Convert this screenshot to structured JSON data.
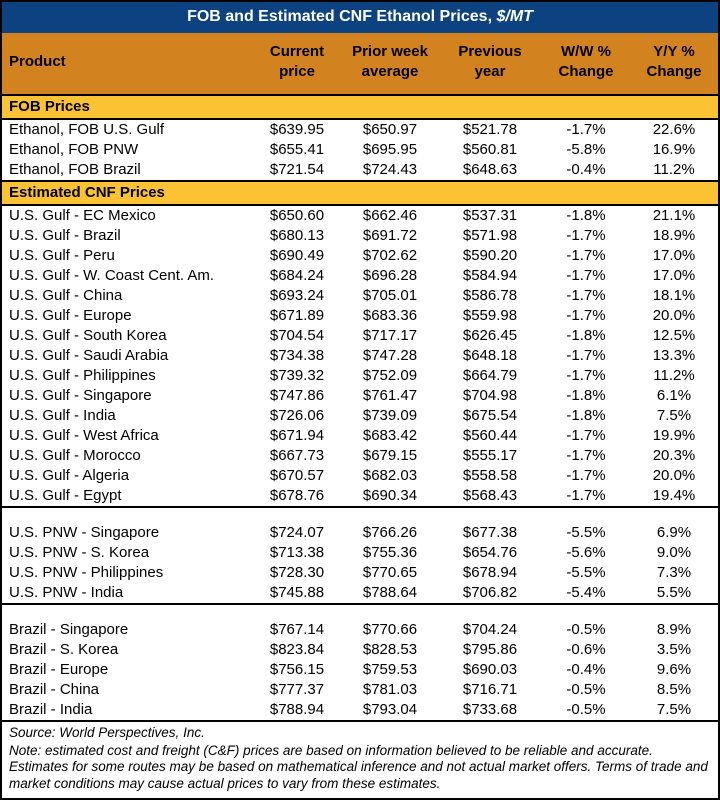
{
  "title": {
    "text": "FOB and Estimated CNF Ethanol Prices,",
    "unit": "$/MT"
  },
  "colors": {
    "title_bar_blue": "#0D4281",
    "column_header_orange": "#D28320",
    "section_band_gold": "#FBC334",
    "text_black": "#000000",
    "background_white": "#FFFFFF"
  },
  "chart_data": {
    "type": "table",
    "title": "FOB and Estimated CNF Ethanol Prices, $/MT",
    "columns": [
      "Product",
      "Current price",
      "Prior week average",
      "Previous year",
      "W/W % Change",
      "Y/Y % Change"
    ],
    "sections": [
      {
        "header": "FOB Prices",
        "groups": [
          [
            [
              "Ethanol, FOB U.S. Gulf",
              "$639.95",
              "$650.97",
              "$521.78",
              "-1.7%",
              "22.6%"
            ],
            [
              "Ethanol, FOB PNW",
              "$655.41",
              "$695.95",
              "$560.81",
              "-5.8%",
              "16.9%"
            ],
            [
              "Ethanol, FOB Brazil",
              "$721.54",
              "$724.43",
              "$648.63",
              "-0.4%",
              "11.2%"
            ]
          ]
        ]
      },
      {
        "header": "Estimated CNF Prices",
        "groups": [
          [
            [
              "U.S. Gulf - EC Mexico",
              "$650.60",
              "$662.46",
              "$537.31",
              "-1.8%",
              "21.1%"
            ],
            [
              "U.S. Gulf - Brazil",
              "$680.13",
              "$691.72",
              "$571.98",
              "-1.7%",
              "18.9%"
            ],
            [
              "U.S. Gulf - Peru",
              "$690.49",
              "$702.62",
              "$590.20",
              "-1.7%",
              "17.0%"
            ],
            [
              "U.S. Gulf - W. Coast Cent. Am.",
              "$684.24",
              "$696.28",
              "$584.94",
              "-1.7%",
              "17.0%"
            ],
            [
              "U.S. Gulf - China",
              "$693.24",
              "$705.01",
              "$586.78",
              "-1.7%",
              "18.1%"
            ],
            [
              "U.S. Gulf - Europe",
              "$671.89",
              "$683.36",
              "$559.98",
              "-1.7%",
              "20.0%"
            ],
            [
              "U.S. Gulf - South Korea",
              "$704.54",
              "$717.17",
              "$626.45",
              "-1.8%",
              "12.5%"
            ],
            [
              "U.S. Gulf - Saudi Arabia",
              "$734.38",
              "$747.28",
              "$648.18",
              "-1.7%",
              "13.3%"
            ],
            [
              "U.S. Gulf - Philippines",
              "$739.32",
              "$752.09",
              "$664.79",
              "-1.7%",
              "11.2%"
            ],
            [
              "U.S. Gulf - Singapore",
              "$747.86",
              "$761.47",
              "$704.98",
              "-1.8%",
              "6.1%"
            ],
            [
              "U.S. Gulf - India",
              "$726.06",
              "$739.09",
              "$675.54",
              "-1.8%",
              "7.5%"
            ],
            [
              "U.S. Gulf - West Africa",
              "$671.94",
              "$683.42",
              "$560.44",
              "-1.7%",
              "19.9%"
            ],
            [
              "U.S. Gulf - Morocco",
              "$667.73",
              "$679.15",
              "$555.17",
              "-1.7%",
              "20.3%"
            ],
            [
              "U.S. Gulf - Algeria",
              "$670.57",
              "$682.03",
              "$558.58",
              "-1.7%",
              "20.0%"
            ],
            [
              "U.S. Gulf - Egypt",
              "$678.76",
              "$690.34",
              "$568.43",
              "-1.7%",
              "19.4%"
            ]
          ],
          [
            [
              "U.S. PNW - Singapore",
              "$724.07",
              "$766.26",
              "$677.38",
              "-5.5%",
              "6.9%"
            ],
            [
              "U.S. PNW - S. Korea",
              "$713.38",
              "$755.36",
              "$654.76",
              "-5.6%",
              "9.0%"
            ],
            [
              "U.S. PNW - Philippines",
              "$728.30",
              "$770.65",
              "$678.94",
              "-5.5%",
              "7.3%"
            ],
            [
              "U.S. PNW - India",
              "$745.88",
              "$788.64",
              "$706.82",
              "-5.4%",
              "5.5%"
            ]
          ],
          [
            [
              "Brazil - Singapore",
              "$767.14",
              "$770.66",
              "$704.24",
              "-0.5%",
              "8.9%"
            ],
            [
              "Brazil - S. Korea",
              "$823.84",
              "$828.53",
              "$795.86",
              "-0.6%",
              "3.5%"
            ],
            [
              "Brazil - Europe",
              "$756.15",
              "$759.53",
              "$690.03",
              "-0.4%",
              "9.6%"
            ],
            [
              "Brazil - China",
              "$777.37",
              "$781.03",
              "$716.71",
              "-0.5%",
              "8.5%"
            ],
            [
              "Brazil - India",
              "$788.94",
              "$793.04",
              "$733.68",
              "-0.5%",
              "7.5%"
            ]
          ]
        ]
      }
    ]
  },
  "footer": {
    "source": "Source: World Perspectives, Inc.",
    "note": "Note: estimated cost and freight (C&F) prices are based on information believed to be reliable and accurate. Estimates for some routes may be based on mathematical inference and not actual market offers. Terms of trade and market conditions may cause actual prices to vary from these estimates."
  }
}
